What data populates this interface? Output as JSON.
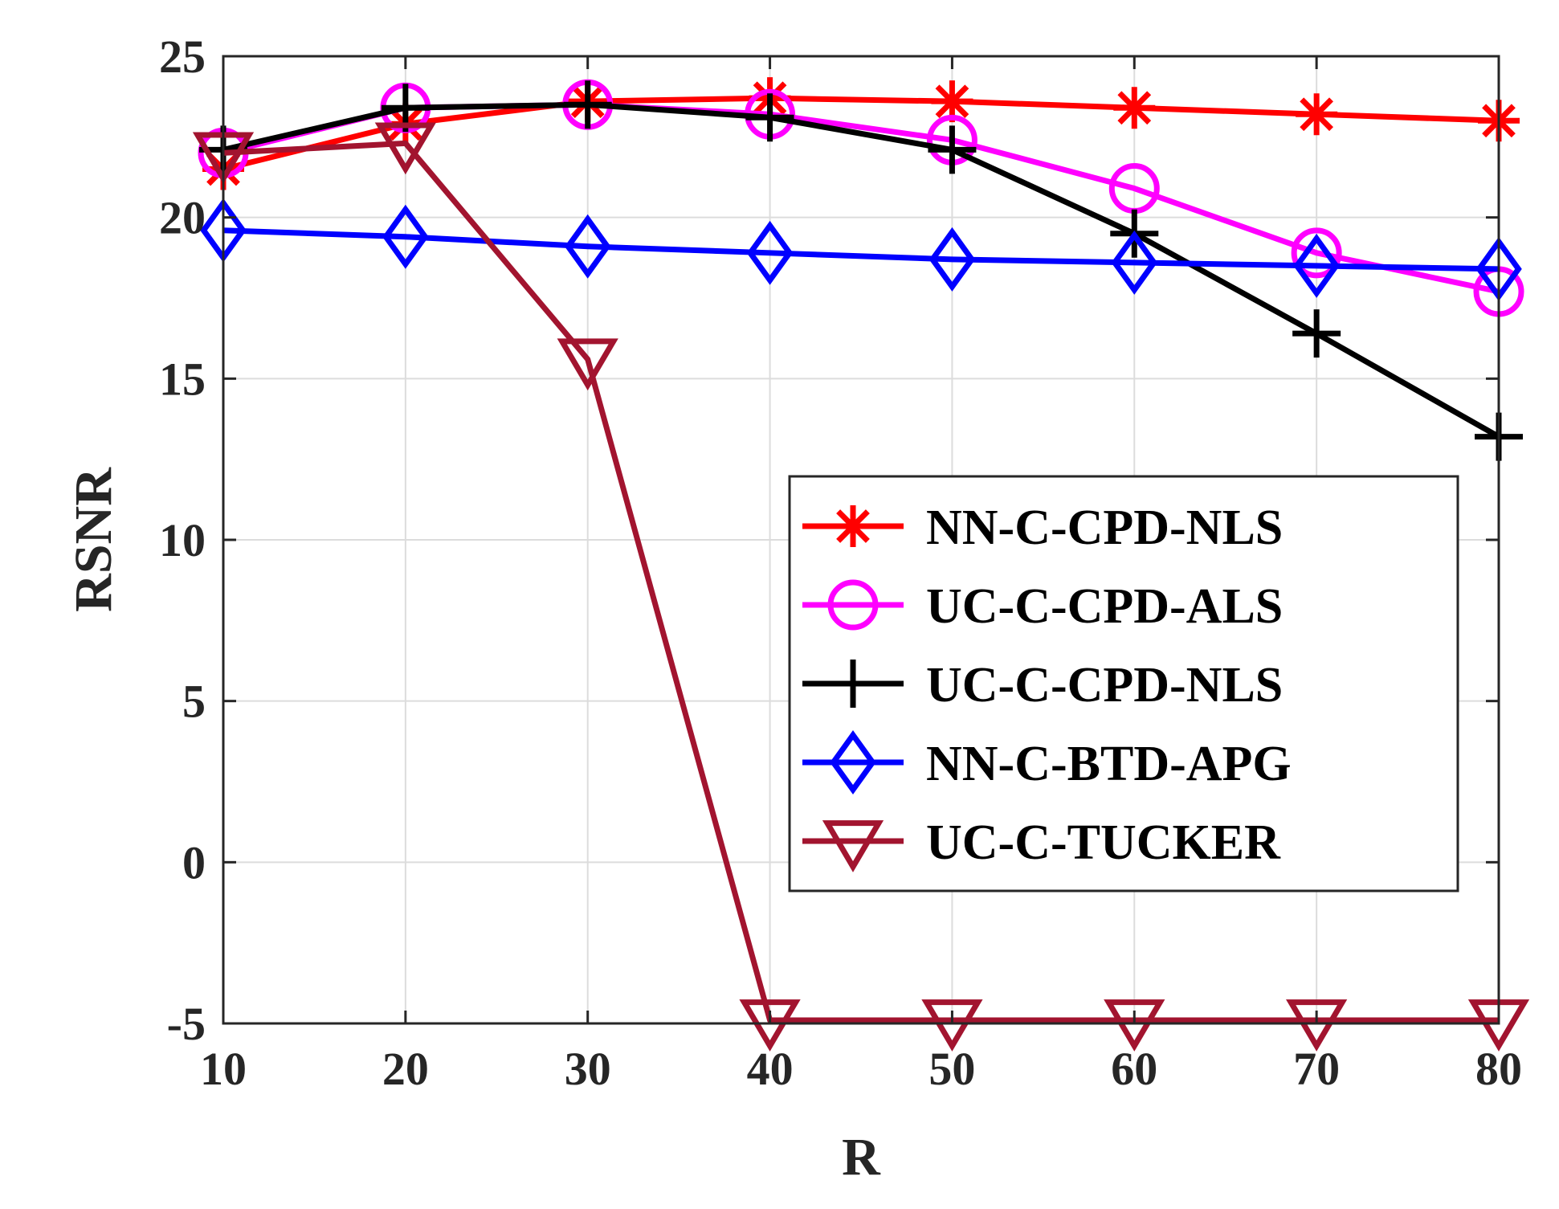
{
  "chart_data": {
    "type": "line",
    "title": "",
    "xlabel": "R",
    "ylabel": "RSNR",
    "x": [
      10,
      20,
      30,
      40,
      50,
      60,
      70,
      80
    ],
    "xlim": [
      10,
      80
    ],
    "ylim": [
      -5,
      25
    ],
    "xticks": [
      "10",
      "20",
      "30",
      "40",
      "50",
      "60",
      "70",
      "80"
    ],
    "yticks": [
      "-5",
      "0",
      "5",
      "10",
      "15",
      "20",
      "25"
    ],
    "grid": true,
    "legend_position": "lower-right",
    "series": [
      {
        "name": "NN-C-CPD-NLS",
        "color": "#ff0000",
        "marker": "asterisk",
        "values": [
          21.5,
          22.9,
          23.6,
          23.7,
          23.6,
          23.4,
          23.2,
          23.0
        ]
      },
      {
        "name": "UC-C-CPD-ALS",
        "color": "#ff00ff",
        "marker": "circle",
        "values": [
          22.0,
          23.4,
          23.5,
          23.2,
          22.4,
          20.9,
          18.9,
          17.7
        ]
      },
      {
        "name": "UC-C-CPD-NLS",
        "color": "#000000",
        "marker": "plus",
        "values": [
          22.1,
          23.4,
          23.5,
          23.1,
          22.1,
          19.5,
          16.4,
          13.2
        ]
      },
      {
        "name": "NN-C-BTD-APG",
        "color": "#0000ff",
        "marker": "diamond",
        "values": [
          19.6,
          19.4,
          19.1,
          18.9,
          18.7,
          18.6,
          18.5,
          18.4
        ]
      },
      {
        "name": "UC-C-TUCKER",
        "color": "#a2142f",
        "marker": "triangle-down",
        "values": [
          22.0,
          22.3,
          15.6,
          -4.9,
          -4.9,
          -4.9,
          -4.9,
          -4.9
        ]
      }
    ]
  }
}
